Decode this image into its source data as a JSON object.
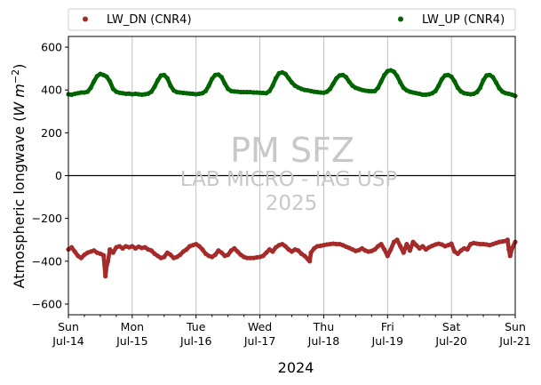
{
  "chart_data": {
    "type": "scatter",
    "ylabel_main": "Atmospheric longwave (",
    "ylabel_math": "W m",
    "ylabel_sup": "−2",
    "ylabel_close": ")",
    "xlabel": "2024",
    "ylim": [
      -650,
      650
    ],
    "xlim_days": [
      0,
      7
    ],
    "yticks": [
      600,
      400,
      200,
      0,
      -200,
      -400,
      -600
    ],
    "ytick_labels": [
      "600",
      "400",
      "200",
      "0",
      "−200",
      "−400",
      "−600"
    ],
    "xticks": [
      {
        "day": "Sun",
        "date": "Jul-14"
      },
      {
        "day": "Mon",
        "date": "Jul-15"
      },
      {
        "day": "Tue",
        "date": "Jul-16"
      },
      {
        "day": "Wed",
        "date": "Jul-17"
      },
      {
        "day": "Thu",
        "date": "Jul-18"
      },
      {
        "day": "Fri",
        "date": "Jul-19"
      },
      {
        "day": "Sat",
        "date": "Jul-20"
      },
      {
        "day": "Sun",
        "date": "Jul-21"
      }
    ],
    "grid": "vertical",
    "zero_line": true,
    "legend_position": "above-plot",
    "series": [
      {
        "name": "LW_DN (CNR4)",
        "color": "#a52a2a",
        "points": [
          [
            0.0,
            -345
          ],
          [
            0.05,
            -335
          ],
          [
            0.1,
            -355
          ],
          [
            0.15,
            -375
          ],
          [
            0.2,
            -385
          ],
          [
            0.25,
            -370
          ],
          [
            0.3,
            -360
          ],
          [
            0.35,
            -355
          ],
          [
            0.4,
            -350
          ],
          [
            0.45,
            -360
          ],
          [
            0.5,
            -365
          ],
          [
            0.55,
            -372
          ],
          [
            0.58,
            -470
          ],
          [
            0.6,
            -420
          ],
          [
            0.62,
            -400
          ],
          [
            0.65,
            -345
          ],
          [
            0.7,
            -360
          ],
          [
            0.75,
            -335
          ],
          [
            0.8,
            -330
          ],
          [
            0.85,
            -340
          ],
          [
            0.9,
            -330
          ],
          [
            0.95,
            -335
          ],
          [
            1.0,
            -330
          ],
          [
            1.05,
            -340
          ],
          [
            1.1,
            -332
          ],
          [
            1.15,
            -338
          ],
          [
            1.2,
            -335
          ],
          [
            1.25,
            -345
          ],
          [
            1.3,
            -350
          ],
          [
            1.35,
            -365
          ],
          [
            1.4,
            -375
          ],
          [
            1.45,
            -385
          ],
          [
            1.5,
            -380
          ],
          [
            1.55,
            -360
          ],
          [
            1.6,
            -370
          ],
          [
            1.65,
            -385
          ],
          [
            1.7,
            -380
          ],
          [
            1.75,
            -370
          ],
          [
            1.8,
            -355
          ],
          [
            1.85,
            -345
          ],
          [
            1.9,
            -330
          ],
          [
            1.95,
            -325
          ],
          [
            2.0,
            -320
          ],
          [
            2.05,
            -330
          ],
          [
            2.1,
            -345
          ],
          [
            2.15,
            -365
          ],
          [
            2.2,
            -375
          ],
          [
            2.25,
            -380
          ],
          [
            2.3,
            -370
          ],
          [
            2.35,
            -350
          ],
          [
            2.4,
            -360
          ],
          [
            2.45,
            -375
          ],
          [
            2.5,
            -370
          ],
          [
            2.55,
            -350
          ],
          [
            2.6,
            -340
          ],
          [
            2.65,
            -355
          ],
          [
            2.7,
            -370
          ],
          [
            2.75,
            -380
          ],
          [
            2.8,
            -385
          ],
          [
            2.85,
            -385
          ],
          [
            2.9,
            -385
          ],
          [
            2.95,
            -382
          ],
          [
            3.0,
            -380
          ],
          [
            3.05,
            -375
          ],
          [
            3.1,
            -360
          ],
          [
            3.15,
            -345
          ],
          [
            3.2,
            -355
          ],
          [
            3.25,
            -335
          ],
          [
            3.3,
            -325
          ],
          [
            3.35,
            -320
          ],
          [
            3.4,
            -330
          ],
          [
            3.45,
            -345
          ],
          [
            3.5,
            -355
          ],
          [
            3.55,
            -345
          ],
          [
            3.6,
            -350
          ],
          [
            3.65,
            -365
          ],
          [
            3.7,
            -375
          ],
          [
            3.75,
            -390
          ],
          [
            3.78,
            -400
          ],
          [
            3.8,
            -360
          ],
          [
            3.85,
            -340
          ],
          [
            3.9,
            -330
          ],
          [
            3.95,
            -328
          ],
          [
            4.0,
            -325
          ],
          [
            4.05,
            -322
          ],
          [
            4.1,
            -320
          ],
          [
            4.15,
            -318
          ],
          [
            4.2,
            -320
          ],
          [
            4.25,
            -320
          ],
          [
            4.3,
            -325
          ],
          [
            4.35,
            -332
          ],
          [
            4.4,
            -338
          ],
          [
            4.45,
            -345
          ],
          [
            4.5,
            -352
          ],
          [
            4.55,
            -348
          ],
          [
            4.6,
            -340
          ],
          [
            4.65,
            -350
          ],
          [
            4.7,
            -355
          ],
          [
            4.75,
            -352
          ],
          [
            4.8,
            -345
          ],
          [
            4.85,
            -330
          ],
          [
            4.9,
            -320
          ],
          [
            4.95,
            -345
          ],
          [
            5.0,
            -375
          ],
          [
            5.05,
            -345
          ],
          [
            5.1,
            -310
          ],
          [
            5.15,
            -300
          ],
          [
            5.2,
            -330
          ],
          [
            5.25,
            -360
          ],
          [
            5.3,
            -320
          ],
          [
            5.35,
            -350
          ],
          [
            5.4,
            -310
          ],
          [
            5.45,
            -325
          ],
          [
            5.5,
            -340
          ],
          [
            5.55,
            -330
          ],
          [
            5.6,
            -345
          ],
          [
            5.65,
            -335
          ],
          [
            5.7,
            -328
          ],
          [
            5.75,
            -322
          ],
          [
            5.8,
            -318
          ],
          [
            5.85,
            -322
          ],
          [
            5.9,
            -330
          ],
          [
            5.95,
            -325
          ],
          [
            6.0,
            -318
          ],
          [
            6.05,
            -355
          ],
          [
            6.1,
            -365
          ],
          [
            6.15,
            -350
          ],
          [
            6.2,
            -340
          ],
          [
            6.25,
            -345
          ],
          [
            6.3,
            -320
          ],
          [
            6.35,
            -315
          ],
          [
            6.4,
            -318
          ],
          [
            6.45,
            -320
          ],
          [
            6.5,
            -320
          ],
          [
            6.55,
            -322
          ],
          [
            6.6,
            -325
          ],
          [
            6.65,
            -320
          ],
          [
            6.7,
            -315
          ],
          [
            6.75,
            -310
          ],
          [
            6.8,
            -308
          ],
          [
            6.85,
            -305
          ],
          [
            6.88,
            -300
          ],
          [
            6.9,
            -345
          ],
          [
            6.92,
            -375
          ],
          [
            6.95,
            -340
          ],
          [
            7.0,
            -310
          ]
        ]
      },
      {
        "name": "LW_UP (CNR4)",
        "color": "#006400",
        "points": [
          [
            0.0,
            380
          ],
          [
            0.05,
            378
          ],
          [
            0.1,
            382
          ],
          [
            0.15,
            385
          ],
          [
            0.2,
            388
          ],
          [
            0.25,
            388
          ],
          [
            0.3,
            392
          ],
          [
            0.35,
            410
          ],
          [
            0.4,
            440
          ],
          [
            0.45,
            465
          ],
          [
            0.5,
            475
          ],
          [
            0.55,
            470
          ],
          [
            0.6,
            462
          ],
          [
            0.65,
            440
          ],
          [
            0.7,
            405
          ],
          [
            0.75,
            392
          ],
          [
            0.8,
            387
          ],
          [
            0.85,
            385
          ],
          [
            0.9,
            382
          ],
          [
            0.95,
            383
          ],
          [
            1.0,
            380
          ],
          [
            1.05,
            382
          ],
          [
            1.1,
            380
          ],
          [
            1.15,
            378
          ],
          [
            1.2,
            380
          ],
          [
            1.25,
            383
          ],
          [
            1.3,
            392
          ],
          [
            1.35,
            415
          ],
          [
            1.4,
            445
          ],
          [
            1.45,
            468
          ],
          [
            1.5,
            470
          ],
          [
            1.55,
            455
          ],
          [
            1.6,
            420
          ],
          [
            1.65,
            398
          ],
          [
            1.7,
            390
          ],
          [
            1.75,
            388
          ],
          [
            1.8,
            386
          ],
          [
            1.85,
            385
          ],
          [
            1.9,
            383
          ],
          [
            1.95,
            382
          ],
          [
            2.0,
            380
          ],
          [
            2.05,
            382
          ],
          [
            2.1,
            385
          ],
          [
            2.15,
            395
          ],
          [
            2.2,
            420
          ],
          [
            2.25,
            452
          ],
          [
            2.3,
            470
          ],
          [
            2.35,
            472
          ],
          [
            2.4,
            460
          ],
          [
            2.45,
            430
          ],
          [
            2.5,
            405
          ],
          [
            2.55,
            395
          ],
          [
            2.6,
            393
          ],
          [
            2.65,
            392
          ],
          [
            2.7,
            390
          ],
          [
            2.75,
            390
          ],
          [
            2.8,
            390
          ],
          [
            2.85,
            390
          ],
          [
            2.9,
            388
          ],
          [
            2.95,
            388
          ],
          [
            3.0,
            387
          ],
          [
            3.05,
            386
          ],
          [
            3.1,
            385
          ],
          [
            3.15,
            395
          ],
          [
            3.2,
            420
          ],
          [
            3.25,
            455
          ],
          [
            3.3,
            478
          ],
          [
            3.35,
            482
          ],
          [
            3.4,
            475
          ],
          [
            3.45,
            455
          ],
          [
            3.5,
            435
          ],
          [
            3.55,
            420
          ],
          [
            3.6,
            412
          ],
          [
            3.65,
            405
          ],
          [
            3.7,
            400
          ],
          [
            3.75,
            398
          ],
          [
            3.8,
            395
          ],
          [
            3.85,
            392
          ],
          [
            3.9,
            390
          ],
          [
            3.95,
            388
          ],
          [
            4.0,
            387
          ],
          [
            4.05,
            392
          ],
          [
            4.1,
            405
          ],
          [
            4.15,
            430
          ],
          [
            4.2,
            455
          ],
          [
            4.25,
            468
          ],
          [
            4.3,
            470
          ],
          [
            4.35,
            460
          ],
          [
            4.4,
            438
          ],
          [
            4.45,
            420
          ],
          [
            4.5,
            410
          ],
          [
            4.55,
            405
          ],
          [
            4.6,
            400
          ],
          [
            4.65,
            397
          ],
          [
            4.7,
            395
          ],
          [
            4.75,
            394
          ],
          [
            4.8,
            395
          ],
          [
            4.85,
            410
          ],
          [
            4.9,
            440
          ],
          [
            4.95,
            470
          ],
          [
            5.0,
            488
          ],
          [
            5.05,
            492
          ],
          [
            5.1,
            485
          ],
          [
            5.15,
            465
          ],
          [
            5.2,
            435
          ],
          [
            5.25,
            410
          ],
          [
            5.3,
            398
          ],
          [
            5.35,
            392
          ],
          [
            5.4,
            388
          ],
          [
            5.45,
            385
          ],
          [
            5.5,
            382
          ],
          [
            5.55,
            378
          ],
          [
            5.6,
            378
          ],
          [
            5.65,
            380
          ],
          [
            5.7,
            385
          ],
          [
            5.75,
            395
          ],
          [
            5.8,
            420
          ],
          [
            5.85,
            450
          ],
          [
            5.9,
            468
          ],
          [
            5.95,
            470
          ],
          [
            6.0,
            462
          ],
          [
            6.05,
            440
          ],
          [
            6.1,
            410
          ],
          [
            6.15,
            393
          ],
          [
            6.2,
            385
          ],
          [
            6.25,
            382
          ],
          [
            6.3,
            380
          ],
          [
            6.35,
            382
          ],
          [
            6.4,
            390
          ],
          [
            6.45,
            410
          ],
          [
            6.5,
            445
          ],
          [
            6.55,
            468
          ],
          [
            6.6,
            470
          ],
          [
            6.65,
            460
          ],
          [
            6.7,
            435
          ],
          [
            6.75,
            408
          ],
          [
            6.8,
            392
          ],
          [
            6.85,
            385
          ],
          [
            6.9,
            382
          ],
          [
            6.95,
            378
          ],
          [
            7.0,
            372
          ]
        ]
      }
    ]
  },
  "watermark": {
    "line1": "PM SFZ",
    "line2": "LAB MICRO - IAG USP",
    "line3": "2025"
  }
}
